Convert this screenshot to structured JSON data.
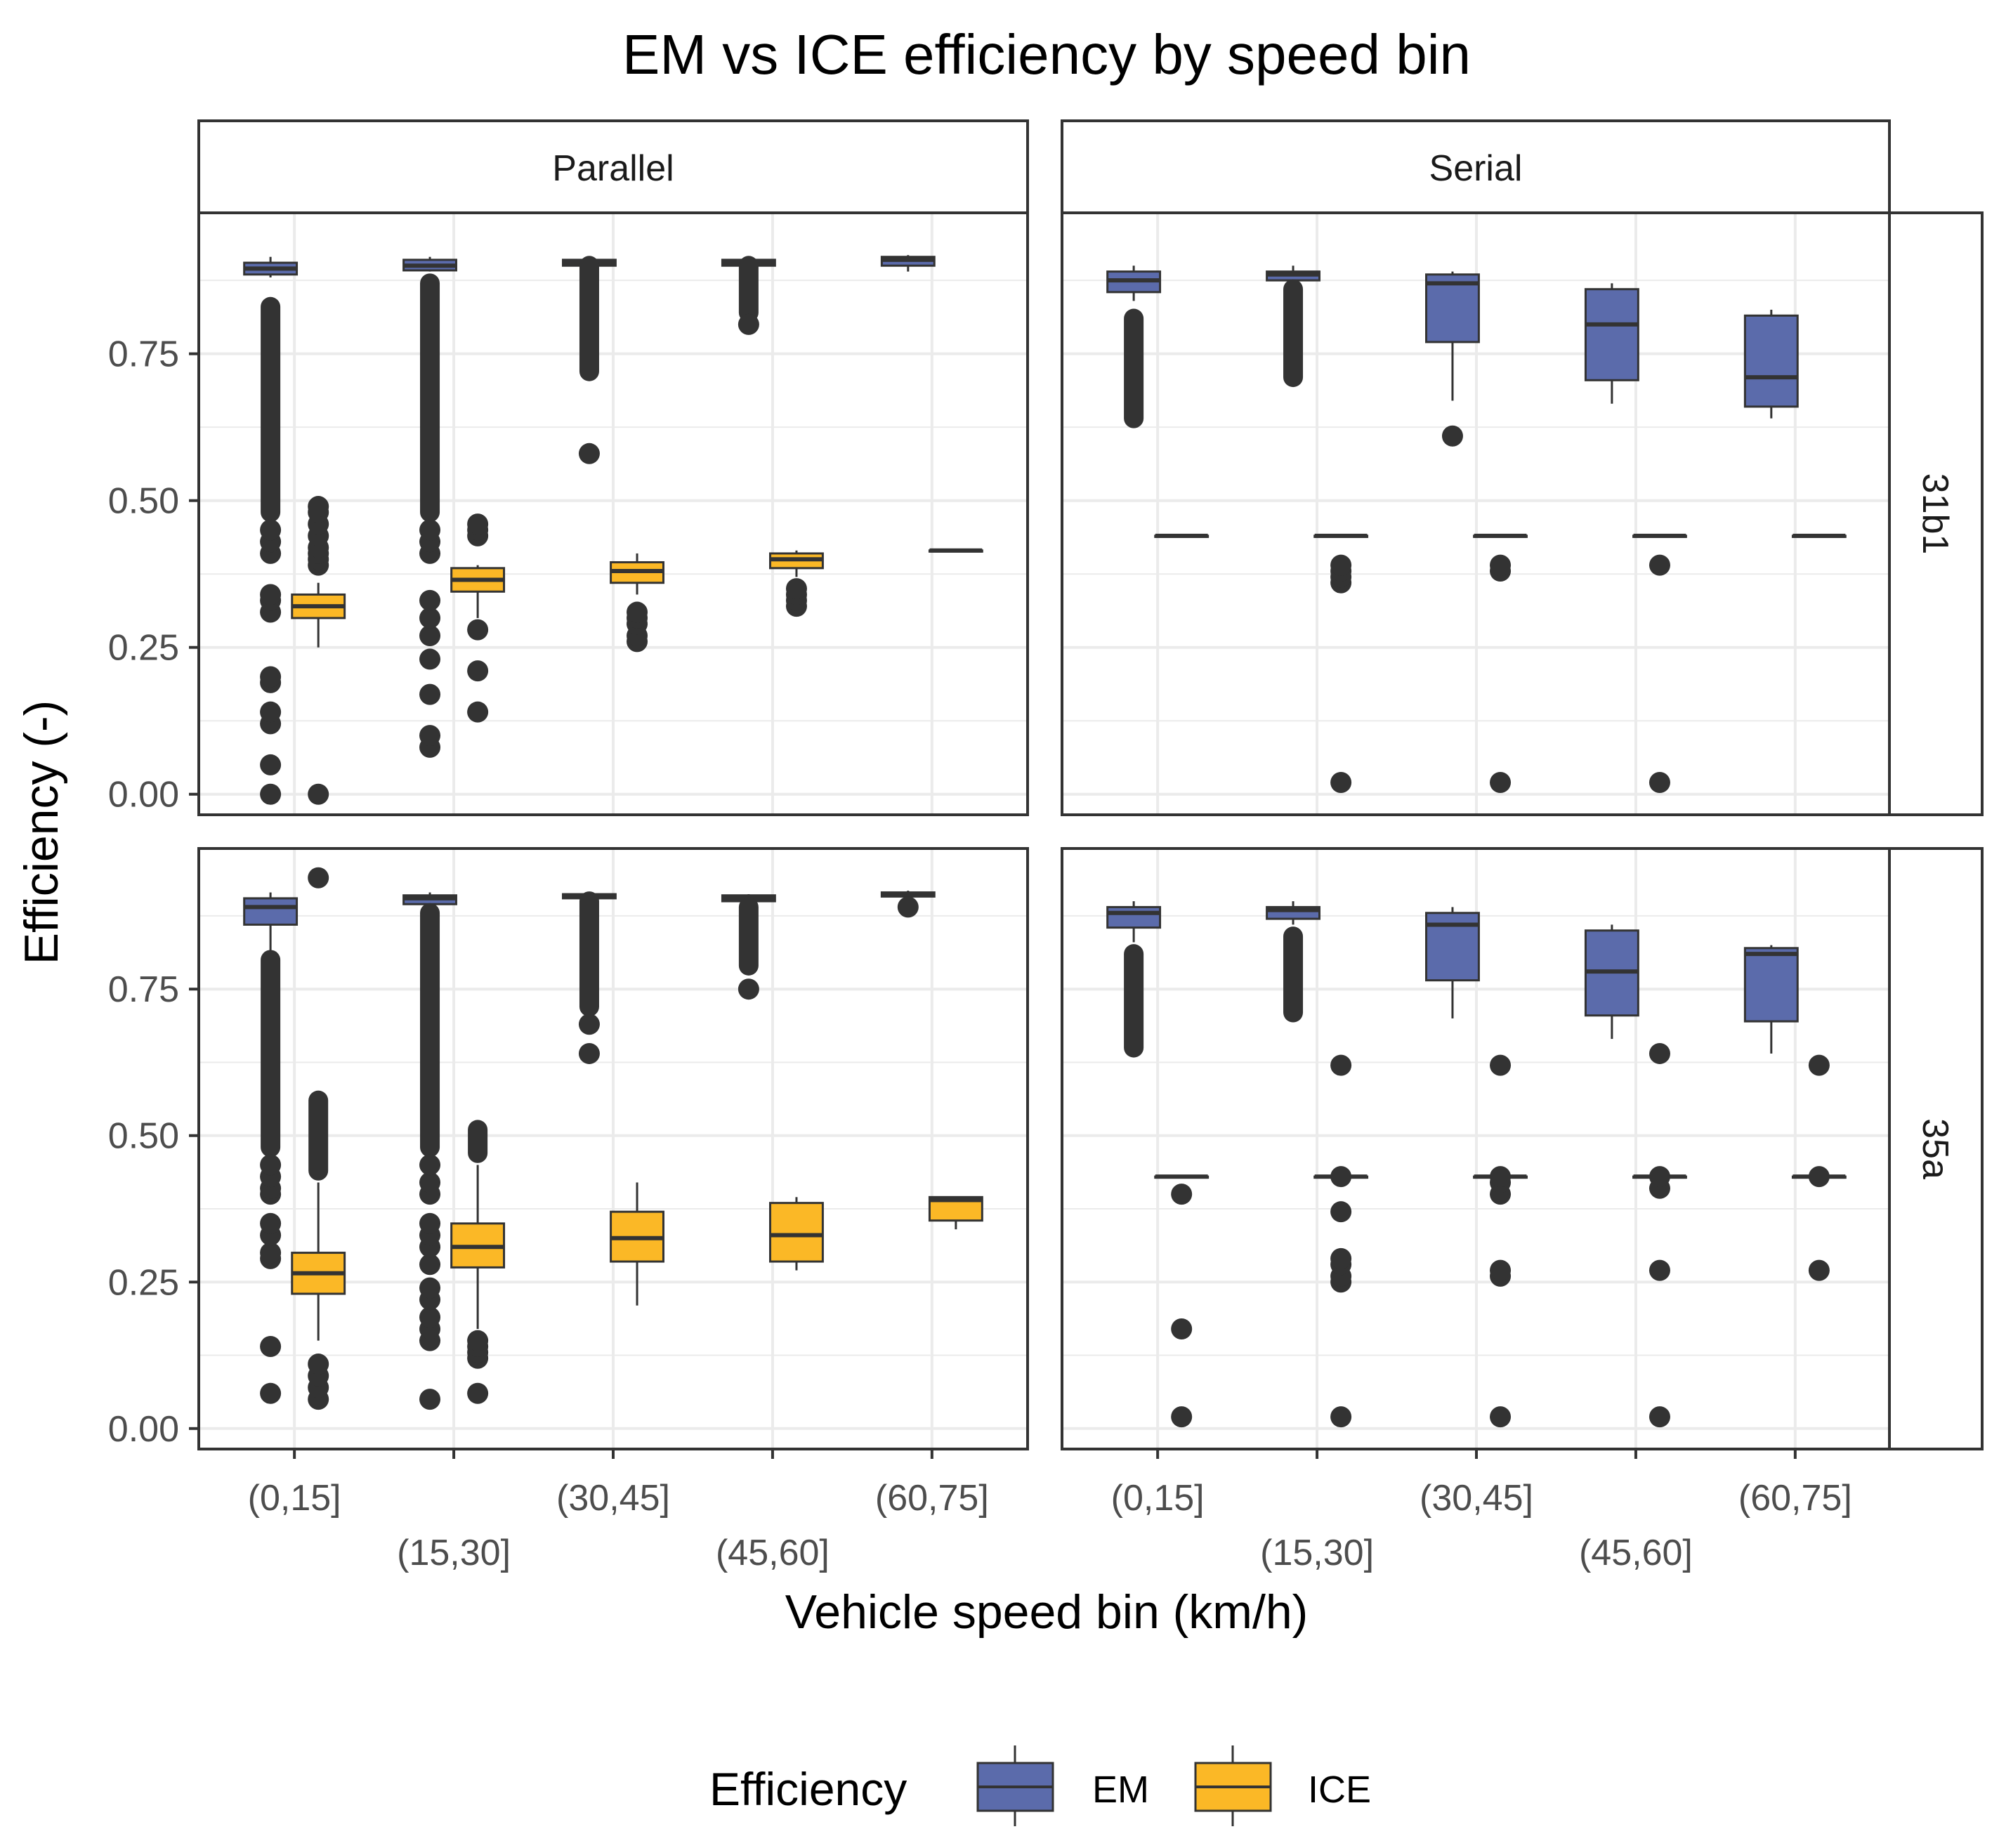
{
  "chart_data": {
    "type": "boxplot",
    "title": "EM vs ICE efficiency by speed bin",
    "xlabel": "Vehicle speed bin (km/h)",
    "ylabel": "Efficiency (-)",
    "ylim": [
      -0.035,
      0.99
    ],
    "yticks": [
      0,
      0.25,
      0.5,
      0.75
    ],
    "ytick_labels": [
      "0.00",
      "0.25",
      "0.50",
      "0.75"
    ],
    "categories": [
      "(0,15]",
      "(15,30]",
      "(30,45]",
      "(45,60]",
      "(60,75]"
    ],
    "column_facets": [
      "Parallel",
      "Serial"
    ],
    "row_facets": [
      "31b1",
      "35a"
    ],
    "legend": {
      "title": "Efficiency",
      "entries": [
        {
          "name": "EM",
          "color": "#5b6bab"
        },
        {
          "name": "ICE",
          "color": "#fbb826"
        }
      ]
    },
    "colors": {
      "EM": "#5b6bab",
      "ICE": "#fbb826",
      "outlier": "#333333",
      "grid": "#ebebeb",
      "border": "#333333"
    },
    "panels": [
      {
        "col": "Parallel",
        "row": "31b1",
        "EM": [
          {
            "q1": 0.885,
            "med": 0.895,
            "q3": 0.905,
            "wlo": 0.88,
            "whi": 0.915,
            "out": [
              0.0,
              0.05,
              0.12,
              0.14,
              0.19,
              0.2,
              0.31,
              0.33,
              0.34,
              0.41,
              0.43,
              0.45
            ],
            "band": [
              0.48,
              0.83
            ]
          },
          {
            "q1": 0.892,
            "med": 0.9,
            "q3": 0.91,
            "wlo": 0.89,
            "whi": 0.915,
            "out": [
              0.08,
              0.1,
              0.17,
              0.23,
              0.27,
              0.3,
              0.33,
              0.41,
              0.43,
              0.45
            ],
            "band": [
              0.48,
              0.87
            ]
          },
          {
            "q1": 0.9,
            "med": 0.905,
            "q3": 0.91,
            "wlo": 0.9,
            "whi": 0.912,
            "out": [
              0.58
            ],
            "band": [
              0.72,
              0.9
            ]
          },
          {
            "q1": 0.9,
            "med": 0.905,
            "q3": 0.91,
            "wlo": 0.9,
            "whi": 0.912,
            "out": [
              0.8
            ],
            "band": [
              0.82,
              0.9
            ]
          },
          {
            "q1": 0.9,
            "med": 0.91,
            "q3": 0.915,
            "wlo": 0.89,
            "whi": 0.918,
            "out": [],
            "band": null
          }
        ],
        "ICE": [
          {
            "q1": 0.3,
            "med": 0.32,
            "q3": 0.34,
            "wlo": 0.25,
            "whi": 0.36,
            "out": [
              0.0,
              0.39,
              0.4,
              0.41,
              0.42,
              0.44,
              0.46,
              0.48,
              0.49
            ],
            "band": null
          },
          {
            "q1": 0.345,
            "med": 0.365,
            "q3": 0.385,
            "wlo": 0.3,
            "whi": 0.39,
            "out": [
              0.14,
              0.21,
              0.28,
              0.44,
              0.45,
              0.46
            ],
            "band": null
          },
          {
            "q1": 0.36,
            "med": 0.38,
            "q3": 0.395,
            "wlo": 0.34,
            "whi": 0.41,
            "out": [
              0.26,
              0.27,
              0.29,
              0.3,
              0.31
            ],
            "band": null
          },
          {
            "q1": 0.385,
            "med": 0.4,
            "q3": 0.41,
            "wlo": 0.37,
            "whi": 0.415,
            "out": [
              0.32,
              0.33,
              0.34,
              0.35
            ],
            "band": null
          },
          {
            "q1": 0.415,
            "med": 0.415,
            "q3": 0.415,
            "wlo": 0.415,
            "whi": 0.415,
            "out": [],
            "band": null
          }
        ]
      },
      {
        "col": "Serial",
        "row": "31b1",
        "EM": [
          {
            "q1": 0.855,
            "med": 0.875,
            "q3": 0.89,
            "wlo": 0.84,
            "whi": 0.9,
            "out": [],
            "band": [
              0.64,
              0.81
            ]
          },
          {
            "q1": 0.875,
            "med": 0.885,
            "q3": 0.89,
            "wlo": 0.86,
            "whi": 0.9,
            "out": [],
            "band": [
              0.71,
              0.86
            ]
          },
          {
            "q1": 0.77,
            "med": 0.87,
            "q3": 0.885,
            "wlo": 0.67,
            "whi": 0.89,
            "out": [
              0.61
            ],
            "band": null
          },
          {
            "q1": 0.705,
            "med": 0.8,
            "q3": 0.86,
            "wlo": 0.665,
            "whi": 0.87,
            "out": [],
            "band": null
          },
          {
            "q1": 0.66,
            "med": 0.71,
            "q3": 0.815,
            "wlo": 0.64,
            "whi": 0.825,
            "out": [],
            "band": null
          }
        ],
        "ICE": [
          {
            "q1": 0.44,
            "med": 0.44,
            "q3": 0.44,
            "wlo": 0.44,
            "whi": 0.44,
            "out": [],
            "band": null
          },
          {
            "q1": 0.44,
            "med": 0.44,
            "q3": 0.44,
            "wlo": 0.44,
            "whi": 0.44,
            "out": [
              0.02,
              0.36,
              0.37,
              0.38,
              0.39
            ],
            "band": null
          },
          {
            "q1": 0.44,
            "med": 0.44,
            "q3": 0.44,
            "wlo": 0.44,
            "whi": 0.44,
            "out": [
              0.02,
              0.38,
              0.39
            ],
            "band": null
          },
          {
            "q1": 0.44,
            "med": 0.44,
            "q3": 0.44,
            "wlo": 0.44,
            "whi": 0.44,
            "out": [
              0.02,
              0.39
            ],
            "band": null
          },
          {
            "q1": 0.44,
            "med": 0.44,
            "q3": 0.44,
            "wlo": 0.44,
            "whi": 0.44,
            "out": [],
            "band": null
          }
        ]
      },
      {
        "col": "Parallel",
        "row": "35a",
        "EM": [
          {
            "q1": 0.86,
            "med": 0.89,
            "q3": 0.905,
            "wlo": 0.81,
            "whi": 0.915,
            "out": [
              0.06,
              0.14,
              0.29,
              0.3,
              0.33,
              0.35,
              0.4,
              0.41,
              0.43,
              0.45
            ],
            "band": [
              0.48,
              0.8
            ]
          },
          {
            "q1": 0.895,
            "med": 0.905,
            "q3": 0.91,
            "wlo": 0.89,
            "whi": 0.915,
            "out": [
              0.05,
              0.15,
              0.17,
              0.19,
              0.22,
              0.24,
              0.28,
              0.31,
              0.33,
              0.35,
              0.4,
              0.42,
              0.45
            ],
            "band": [
              0.48,
              0.88
            ]
          },
          {
            "q1": 0.905,
            "med": 0.91,
            "q3": 0.912,
            "wlo": 0.9,
            "whi": 0.915,
            "out": [
              0.64,
              0.69
            ],
            "band": [
              0.72,
              0.9
            ]
          },
          {
            "q1": 0.9,
            "med": 0.905,
            "q3": 0.91,
            "wlo": 0.895,
            "whi": 0.912,
            "out": [
              0.75
            ],
            "band": [
              0.79,
              0.89
            ]
          },
          {
            "q1": 0.908,
            "med": 0.912,
            "q3": 0.915,
            "wlo": 0.905,
            "whi": 0.918,
            "out": [
              0.89
            ],
            "band": null
          }
        ],
        "ICE": [
          {
            "q1": 0.23,
            "med": 0.265,
            "q3": 0.3,
            "wlo": 0.15,
            "whi": 0.42,
            "out": [
              0.05,
              0.07,
              0.09,
              0.11,
              0.94
            ],
            "band": [
              0.44,
              0.56
            ]
          },
          {
            "q1": 0.275,
            "med": 0.31,
            "q3": 0.35,
            "wlo": 0.17,
            "whi": 0.45,
            "out": [
              0.06,
              0.12,
              0.13,
              0.14,
              0.15
            ],
            "band": [
              0.47,
              0.51
            ]
          },
          {
            "q1": 0.285,
            "med": 0.325,
            "q3": 0.37,
            "wlo": 0.21,
            "whi": 0.42,
            "out": [],
            "band": null
          },
          {
            "q1": 0.285,
            "med": 0.33,
            "q3": 0.385,
            "wlo": 0.27,
            "whi": 0.395,
            "out": [],
            "band": null
          },
          {
            "q1": 0.355,
            "med": 0.39,
            "q3": 0.395,
            "wlo": 0.34,
            "whi": 0.395,
            "out": [],
            "band": null
          }
        ]
      },
      {
        "col": "Serial",
        "row": "35a",
        "EM": [
          {
            "q1": 0.855,
            "med": 0.88,
            "q3": 0.89,
            "wlo": 0.83,
            "whi": 0.9,
            "out": [],
            "band": [
              0.65,
              0.81
            ]
          },
          {
            "q1": 0.87,
            "med": 0.885,
            "q3": 0.89,
            "wlo": 0.86,
            "whi": 0.9,
            "out": [],
            "band": [
              0.71,
              0.84
            ]
          },
          {
            "q1": 0.765,
            "med": 0.86,
            "q3": 0.88,
            "wlo": 0.7,
            "whi": 0.89,
            "out": [],
            "band": null
          },
          {
            "q1": 0.705,
            "med": 0.78,
            "q3": 0.85,
            "wlo": 0.665,
            "whi": 0.86,
            "out": [],
            "band": null
          },
          {
            "q1": 0.695,
            "med": 0.81,
            "q3": 0.82,
            "wlo": 0.64,
            "whi": 0.825,
            "out": [],
            "band": null
          }
        ],
        "ICE": [
          {
            "q1": 0.43,
            "med": 0.43,
            "q3": 0.43,
            "wlo": 0.43,
            "whi": 0.43,
            "out": [
              0.02,
              0.17,
              0.4
            ],
            "band": null
          },
          {
            "q1": 0.43,
            "med": 0.43,
            "q3": 0.43,
            "wlo": 0.43,
            "whi": 0.43,
            "out": [
              0.02,
              0.25,
              0.26,
              0.28,
              0.29,
              0.37,
              0.43,
              0.62
            ],
            "band": null
          },
          {
            "q1": 0.43,
            "med": 0.43,
            "q3": 0.43,
            "wlo": 0.43,
            "whi": 0.43,
            "out": [
              0.02,
              0.26,
              0.27,
              0.4,
              0.42,
              0.43,
              0.62
            ],
            "band": null
          },
          {
            "q1": 0.43,
            "med": 0.43,
            "q3": 0.43,
            "wlo": 0.43,
            "whi": 0.43,
            "out": [
              0.02,
              0.27,
              0.41,
              0.43,
              0.64
            ],
            "band": null
          },
          {
            "q1": 0.43,
            "med": 0.43,
            "q3": 0.43,
            "wlo": 0.43,
            "whi": 0.43,
            "out": [
              0.27,
              0.43,
              0.62
            ],
            "band": null
          }
        ]
      }
    ]
  }
}
